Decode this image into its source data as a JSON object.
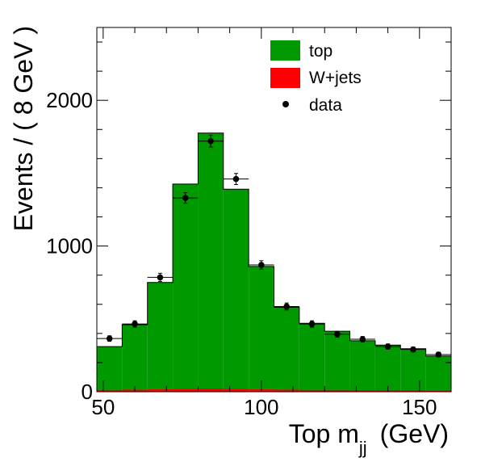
{
  "chart_data": {
    "type": "bar",
    "x_bin_edges": [
      48,
      56,
      64,
      72,
      80,
      88,
      96,
      104,
      112,
      120,
      128,
      136,
      144,
      152,
      160
    ],
    "series": [
      {
        "name": "top",
        "color": "#009900",
        "values": [
          310,
          460,
          750,
          1425,
          1775,
          1390,
          860,
          580,
          470,
          415,
          350,
          320,
          295,
          245
        ]
      },
      {
        "name": "W+jets",
        "color": "#ff0000",
        "values": [
          12,
          14,
          16,
          20,
          22,
          20,
          16,
          14,
          12,
          12,
          10,
          10,
          9,
          8
        ]
      }
    ],
    "data_points": {
      "name": "data",
      "color": "#000000",
      "x": [
        52,
        60,
        68,
        76,
        84,
        92,
        100,
        108,
        116,
        124,
        132,
        140,
        148,
        156
      ],
      "y": [
        365,
        465,
        785,
        1330,
        1720,
        1460,
        870,
        585,
        465,
        395,
        360,
        310,
        290,
        255
      ],
      "yerr": [
        19,
        22,
        28,
        36,
        41,
        38,
        29,
        24,
        22,
        20,
        19,
        18,
        17,
        16
      ],
      "xerr": 4
    },
    "xlabel_main": "Top m",
    "xlabel_sub": "jj",
    "xlabel_unit": "(GeV)",
    "ylabel": "Events / ( 8 GeV )",
    "xlim": [
      48,
      160
    ],
    "ylim": [
      0,
      2500
    ],
    "x_ticks": [
      50,
      100,
      150
    ],
    "y_ticks": [
      0,
      1000,
      2000
    ],
    "legend": {
      "placement": "top-right",
      "entries": [
        "top",
        "W+jets",
        "data"
      ]
    },
    "grid": false
  }
}
